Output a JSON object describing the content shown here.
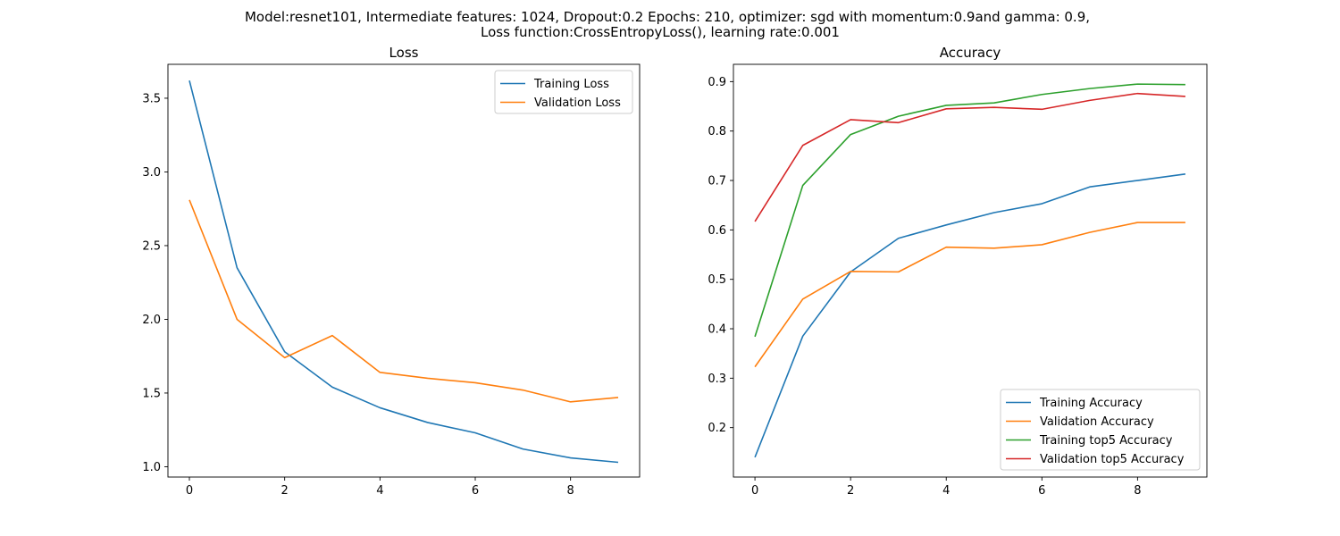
{
  "figure": {
    "suptitle_line1": "Model:resnet101, Intermediate features: 1024, Dropout:0.2 Epochs: 210, optimizer: sgd with momentum:0.9and gamma: 0.9,",
    "suptitle_line2": "Loss function:CrossEntropyLoss(), learning rate:0.001"
  },
  "chart_data": [
    {
      "type": "line",
      "title": "Loss",
      "xlabel": "",
      "ylabel": "",
      "x": [
        0,
        1,
        2,
        3,
        4,
        5,
        6,
        7,
        8,
        9
      ],
      "xlim": [
        -0.45,
        9.45
      ],
      "ylim": [
        0.93,
        3.73
      ],
      "xticks": [
        0,
        2,
        4,
        6,
        8
      ],
      "yticks": [
        1.0,
        1.5,
        2.0,
        2.5,
        3.0,
        3.5
      ],
      "ytick_labels": [
        "1.0",
        "1.5",
        "2.0",
        "2.5",
        "3.0",
        "3.5"
      ],
      "grid": false,
      "legend_position": "upper right",
      "series": [
        {
          "name": "Training Loss",
          "color": "#1f77b4",
          "values": [
            3.62,
            2.35,
            1.78,
            1.54,
            1.4,
            1.3,
            1.23,
            1.12,
            1.06,
            1.03
          ]
        },
        {
          "name": "Validation Loss",
          "color": "#ff7f0e",
          "values": [
            2.81,
            2.0,
            1.74,
            1.89,
            1.64,
            1.6,
            1.57,
            1.52,
            1.44,
            1.47
          ]
        }
      ]
    },
    {
      "type": "line",
      "title": "Accuracy",
      "xlabel": "",
      "ylabel": "",
      "x": [
        0,
        1,
        2,
        3,
        4,
        5,
        6,
        7,
        8,
        9
      ],
      "xlim": [
        -0.45,
        9.45
      ],
      "ylim": [
        0.1,
        0.935
      ],
      "xticks": [
        0,
        2,
        4,
        6,
        8
      ],
      "yticks": [
        0.2,
        0.3,
        0.4,
        0.5,
        0.6,
        0.7,
        0.8,
        0.9
      ],
      "ytick_labels": [
        "0.2",
        "0.3",
        "0.4",
        "0.5",
        "0.6",
        "0.7",
        "0.8",
        "0.9"
      ],
      "grid": false,
      "legend_position": "lower right",
      "series": [
        {
          "name": "Training Accuracy",
          "color": "#1f77b4",
          "values": [
            0.14,
            0.385,
            0.515,
            0.583,
            0.61,
            0.635,
            0.653,
            0.687,
            0.7,
            0.713
          ]
        },
        {
          "name": "Validation Accuracy",
          "color": "#ff7f0e",
          "values": [
            0.323,
            0.46,
            0.516,
            0.515,
            0.565,
            0.563,
            0.57,
            0.595,
            0.615,
            0.615
          ]
        },
        {
          "name": "Training top5 Accuracy",
          "color": "#2ca02c",
          "values": [
            0.384,
            0.69,
            0.793,
            0.83,
            0.852,
            0.857,
            0.874,
            0.886,
            0.895,
            0.894
          ]
        },
        {
          "name": "Validation top5 Accuracy",
          "color": "#d62728",
          "values": [
            0.617,
            0.771,
            0.823,
            0.817,
            0.845,
            0.848,
            0.844,
            0.862,
            0.876,
            0.87
          ]
        }
      ]
    }
  ]
}
